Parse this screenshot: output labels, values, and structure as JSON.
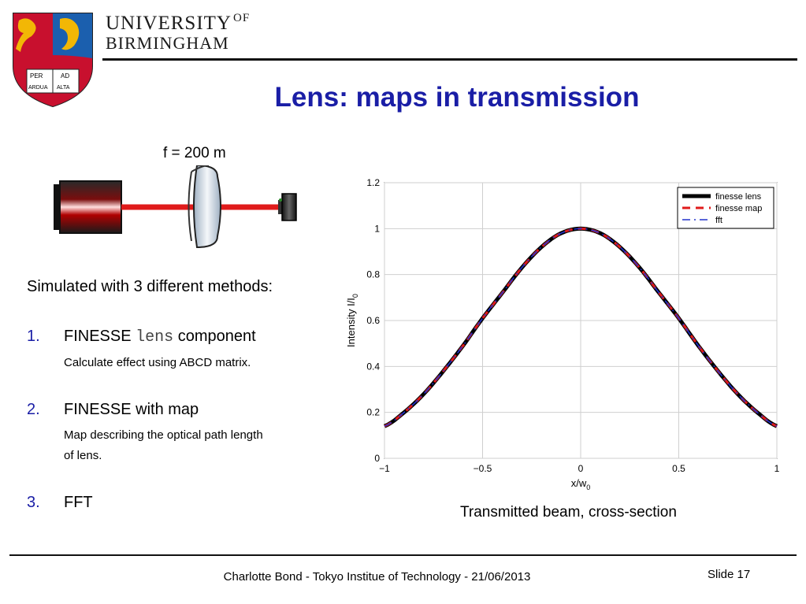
{
  "header": {
    "university_line1": "UNIVERSITY",
    "university_of": "OF",
    "university_line2": "BIRMINGHAM",
    "crest_text": [
      "PER",
      "AD",
      "ARDUA",
      "ALTA"
    ]
  },
  "title": "Lens: maps in transmission",
  "diagram": {
    "focal_label": "f = 200 m"
  },
  "content": {
    "intro": "Simulated with 3 different methods:",
    "items": [
      {
        "number": "1.",
        "label_prefix": "FINESSE",
        "code": "lens",
        "label_suffix": "component",
        "detail": "Calculate effect using ABCD matrix."
      },
      {
        "number": "2.",
        "label": "FINESSE with map",
        "detail_line1": "Map describing the optical path length",
        "detail_line2": "of lens."
      },
      {
        "number": "3.",
        "label": "FFT"
      }
    ]
  },
  "colors": {
    "title": "#1a1ea6",
    "numbers": "#1a1ea6",
    "beam": "#e01b1b"
  },
  "chart_data": {
    "type": "line",
    "xlabel": "x/w",
    "xlabel_sub": "0",
    "ylabel": "Intensity I/I",
    "ylabel_sub": "0",
    "xlim": [
      -1,
      1
    ],
    "ylim": [
      0,
      1.2
    ],
    "xticks": [
      -1,
      -0.5,
      0,
      0.5,
      1
    ],
    "xtick_labels": [
      "−1",
      "−0.5",
      "0",
      "0.5",
      "1"
    ],
    "yticks": [
      0,
      0.2,
      0.4,
      0.6,
      0.8,
      1,
      1.2
    ],
    "ytick_labels": [
      "0",
      "0.2",
      "0.4",
      "0.6",
      "0.8",
      "1",
      "1.2"
    ],
    "grid": true,
    "legend_position": "top-right",
    "x": [
      -1,
      -0.9,
      -0.8,
      -0.7,
      -0.6,
      -0.5,
      -0.4,
      -0.3,
      -0.2,
      -0.1,
      0,
      0.1,
      0.2,
      0.3,
      0.4,
      0.5,
      0.6,
      0.7,
      0.8,
      0.9,
      1
    ],
    "series": [
      {
        "name": "finesse lens",
        "color": "#000000",
        "style": "solid",
        "values": [
          0.14,
          0.2,
          0.28,
          0.38,
          0.49,
          0.61,
          0.72,
          0.83,
          0.92,
          0.98,
          1.0,
          0.98,
          0.92,
          0.83,
          0.72,
          0.61,
          0.49,
          0.38,
          0.28,
          0.2,
          0.14
        ]
      },
      {
        "name": "finesse map",
        "color": "#e01b1b",
        "style": "dashed",
        "values": [
          0.14,
          0.2,
          0.28,
          0.38,
          0.49,
          0.61,
          0.72,
          0.83,
          0.92,
          0.98,
          1.0,
          0.98,
          0.92,
          0.83,
          0.72,
          0.61,
          0.49,
          0.38,
          0.28,
          0.2,
          0.14
        ]
      },
      {
        "name": "fft",
        "color": "#2233cc",
        "style": "dashdot",
        "values": [
          0.14,
          0.2,
          0.28,
          0.38,
          0.49,
          0.61,
          0.72,
          0.83,
          0.92,
          0.98,
          1.0,
          0.98,
          0.92,
          0.83,
          0.72,
          0.61,
          0.49,
          0.38,
          0.28,
          0.2,
          0.14
        ]
      }
    ]
  },
  "caption": "Transmitted beam, cross-section",
  "footer": {
    "text": "Charlotte Bond - Tokyo Institue of Technology - 21/06/2013",
    "slide": "Slide 17"
  }
}
